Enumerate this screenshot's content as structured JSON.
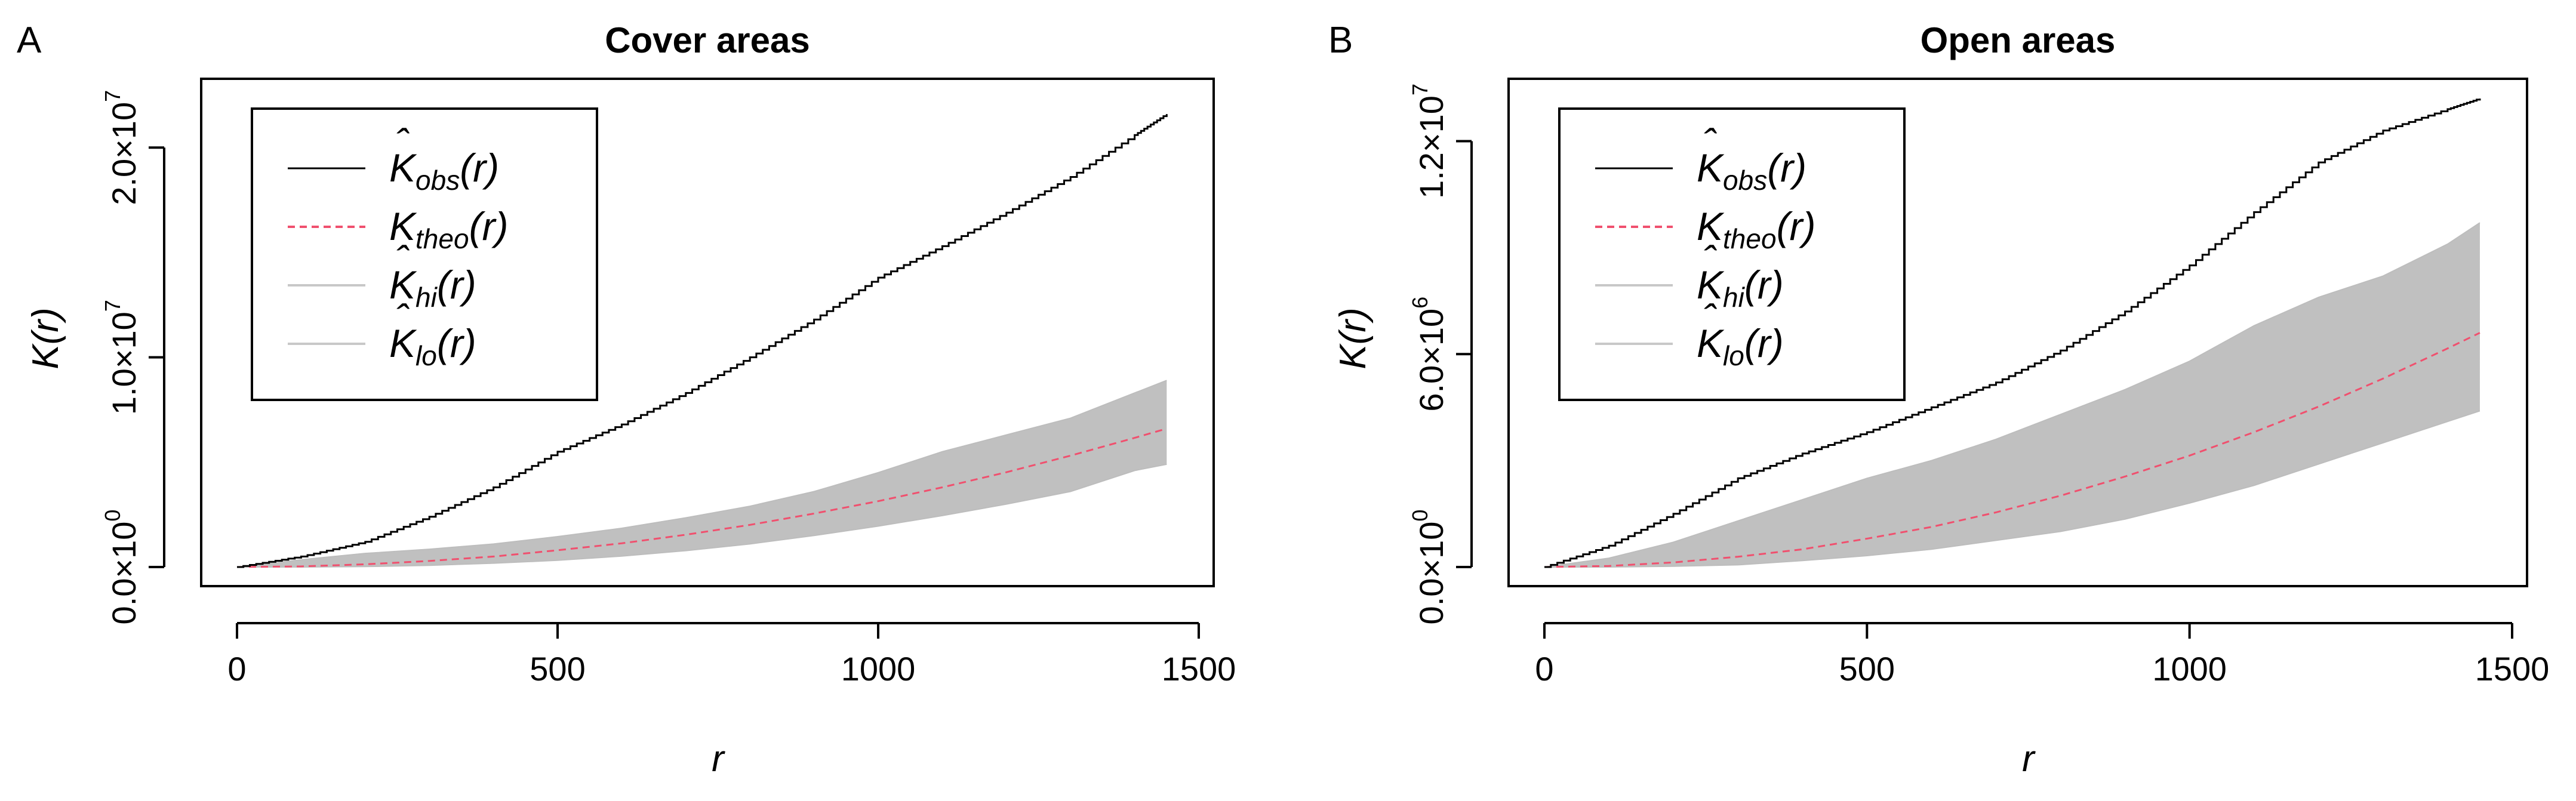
{
  "figure": {
    "panels": [
      {
        "letter": "A"
      },
      {
        "letter": "B"
      }
    ]
  },
  "chart_data": [
    {
      "type": "line",
      "title": "Cover areas",
      "xlabel": "r",
      "ylabel": "K(r)",
      "xlim": [
        0,
        1500
      ],
      "ylim": [
        0,
        22000000
      ],
      "x_ticks": [
        0,
        500,
        1000,
        1500
      ],
      "x_tick_labels": [
        "0",
        "500",
        "1000",
        "1500"
      ],
      "y_ticks": [
        0,
        10000000,
        20000000
      ],
      "y_tick_labels": [
        {
          "mant": "0.0",
          "exp": "0"
        },
        {
          "mant": "1.0",
          "exp": "7"
        },
        {
          "mant": "2.0",
          "exp": "7"
        }
      ],
      "legend": {
        "position": "top-left",
        "entries": [
          {
            "base": "K",
            "hat": true,
            "sub": "obs",
            "suffix": "(r)",
            "style": "solid",
            "color": "#000000"
          },
          {
            "base": "K",
            "hat": false,
            "sub": "theo",
            "suffix": "(r)",
            "style": "dashed",
            "color": "#f0506e"
          },
          {
            "base": "K",
            "hat": true,
            "sub": "hi",
            "suffix": "(r)",
            "style": "solid",
            "color": "#c8c8c8"
          },
          {
            "base": "K",
            "hat": true,
            "sub": "lo",
            "suffix": "(r)",
            "style": "solid",
            "color": "#c8c8c8"
          }
        ]
      },
      "x": [
        0,
        100,
        200,
        300,
        400,
        500,
        600,
        700,
        800,
        900,
        1000,
        1100,
        1200,
        1300,
        1400,
        1450
      ],
      "series": [
        {
          "name": "K_obs(r)",
          "values": [
            0,
            500000,
            1200000,
            2400000,
            3800000,
            5500000,
            6800000,
            8300000,
            10000000,
            11800000,
            13800000,
            15300000,
            16900000,
            18600000,
            20600000,
            21600000
          ]
        },
        {
          "name": "K_theo(r)",
          "values": [
            0,
            30000,
            130000,
            290000,
            500000,
            800000,
            1130000,
            1540000,
            2010000,
            2550000,
            3140000,
            3800000,
            4520000,
            5310000,
            6160000,
            6600000
          ]
        },
        {
          "name": "K_hi(r)",
          "values": [
            0,
            350000,
            650000,
            850000,
            1100000,
            1450000,
            1850000,
            2350000,
            2900000,
            3600000,
            4500000,
            5500000,
            6300000,
            7100000,
            8300000,
            8900000
          ]
        },
        {
          "name": "K_lo(r)",
          "values": [
            0,
            0,
            20000,
            80000,
            180000,
            320000,
            520000,
            780000,
            1100000,
            1500000,
            1950000,
            2450000,
            3000000,
            3600000,
            4600000,
            4900000
          ]
        }
      ],
      "colors": {
        "obs": "#000000",
        "theo": "#f0506e",
        "envelope": "#c0c0c0"
      }
    },
    {
      "type": "line",
      "title": "Open areas",
      "xlabel": "r",
      "ylabel": "K(r)",
      "xlim": [
        0,
        1500
      ],
      "ylim": [
        0,
        13000000
      ],
      "x_ticks": [
        0,
        500,
        1000,
        1500
      ],
      "x_tick_labels": [
        "0",
        "500",
        "1000",
        "1500"
      ],
      "y_ticks": [
        0,
        6000000,
        12000000
      ],
      "y_tick_labels": [
        {
          "mant": "0.0",
          "exp": "0"
        },
        {
          "mant": "6.0",
          "exp": "6"
        },
        {
          "mant": "1.2",
          "exp": "7"
        }
      ],
      "legend": {
        "position": "top-left",
        "entries": [
          {
            "base": "K",
            "hat": true,
            "sub": "obs",
            "suffix": "(r)",
            "style": "solid",
            "color": "#000000"
          },
          {
            "base": "K",
            "hat": false,
            "sub": "theo",
            "suffix": "(r)",
            "style": "dashed",
            "color": "#f0506e"
          },
          {
            "base": "K",
            "hat": true,
            "sub": "hi",
            "suffix": "(r)",
            "style": "solid",
            "color": "#c8c8c8"
          },
          {
            "base": "K",
            "hat": true,
            "sub": "lo",
            "suffix": "(r)",
            "style": "solid",
            "color": "#c8c8c8"
          }
        ]
      },
      "x": [
        0,
        100,
        200,
        300,
        400,
        500,
        600,
        700,
        800,
        900,
        1000,
        1100,
        1200,
        1300,
        1400,
        1450
      ],
      "series": [
        {
          "name": "K_obs(r)",
          "values": [
            0,
            600000,
            1500000,
            2500000,
            3200000,
            3800000,
            4500000,
            5200000,
            6100000,
            7200000,
            8500000,
            10000000,
            11400000,
            12300000,
            12900000,
            13200000
          ]
        },
        {
          "name": "K_theo(r)",
          "values": [
            0,
            30000,
            130000,
            290000,
            500000,
            800000,
            1130000,
            1540000,
            2010000,
            2550000,
            3140000,
            3800000,
            4520000,
            5310000,
            6160000,
            6600000
          ]
        },
        {
          "name": "K_hi(r)",
          "values": [
            0,
            250000,
            700000,
            1300000,
            1900000,
            2500000,
            3000000,
            3600000,
            4300000,
            5000000,
            5800000,
            6800000,
            7600000,
            8200000,
            9100000,
            9700000
          ]
        },
        {
          "name": "K_lo(r)",
          "values": [
            0,
            0,
            20000,
            60000,
            180000,
            320000,
            500000,
            750000,
            1000000,
            1350000,
            1800000,
            2300000,
            2900000,
            3500000,
            4100000,
            4400000
          ]
        }
      ],
      "colors": {
        "obs": "#000000",
        "theo": "#f0506e",
        "envelope": "#c0c0c0"
      }
    }
  ]
}
